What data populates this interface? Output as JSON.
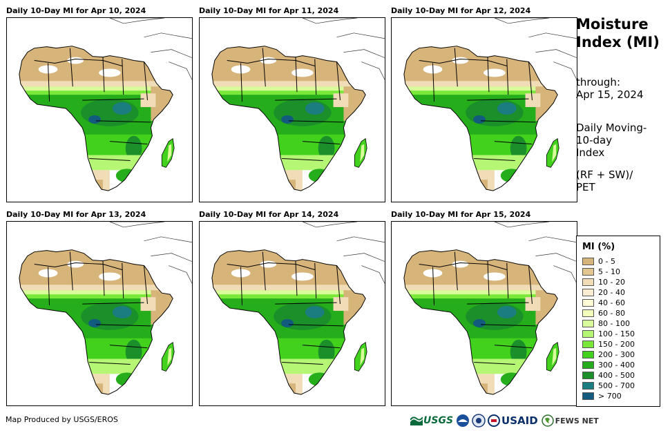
{
  "panels": [
    {
      "title": "Daily 10-Day MI for Apr 10, 2024"
    },
    {
      "title": "Daily 10-Day MI for Apr 11, 2024"
    },
    {
      "title": "Daily 10-Day MI for Apr 12, 2024"
    },
    {
      "title": "Daily 10-Day MI for Apr 13, 2024"
    },
    {
      "title": "Daily 10-Day MI for Apr 14, 2024"
    },
    {
      "title": "Daily 10-Day MI for Apr 15, 2024"
    }
  ],
  "side": {
    "title": "Moisture\nIndex (MI)",
    "through": "through:\nApr 15, 2024",
    "description": "Daily Moving-\n10-day\nIndex",
    "formula": "(RF + SW)/\nPET"
  },
  "legend": {
    "title": "MI (%)",
    "items": [
      {
        "label": "0 - 5",
        "color": "#d6b47a"
      },
      {
        "label": "5 - 10",
        "color": "#e2c690"
      },
      {
        "label": "10 - 20",
        "color": "#f0dcb6"
      },
      {
        "label": "20 - 40",
        "color": "#fbecd2"
      },
      {
        "label": "40 - 60",
        "color": "#fffbd6"
      },
      {
        "label": "60 - 80",
        "color": "#f3fdbc"
      },
      {
        "label": "80 - 100",
        "color": "#d9fb9c"
      },
      {
        "label": "100 - 150",
        "color": "#b5f774"
      },
      {
        "label": "150 - 200",
        "color": "#7ae838"
      },
      {
        "label": "200 - 300",
        "color": "#42d11c"
      },
      {
        "label": "300 - 400",
        "color": "#26ad1c"
      },
      {
        "label": "400 - 500",
        "color": "#1a8f2a"
      },
      {
        "label": "500 - 700",
        "color": "#1a7d80"
      },
      {
        "label": "> 700",
        "color": "#135b7e"
      }
    ]
  },
  "footer": {
    "credit": "Map Produced by USGS/EROS",
    "logos": {
      "usgs": "USGS",
      "usaid": "USAID",
      "fews": "FEWS NET"
    }
  }
}
